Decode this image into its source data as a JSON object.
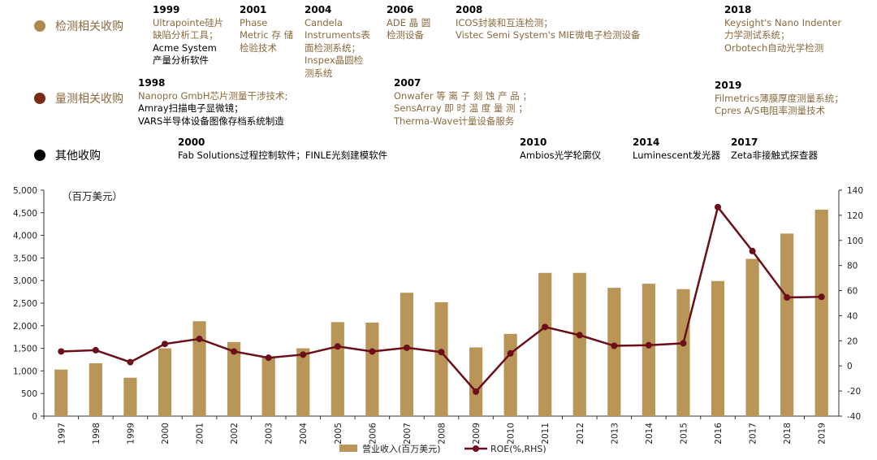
{
  "legend": {
    "inspection": {
      "label": "检测相关收购",
      "color": "#b0894f"
    },
    "metrology": {
      "label": "量测相关收购",
      "color": "#7a2a12"
    },
    "other": {
      "label": "其他收购",
      "color": "#000000"
    }
  },
  "events": {
    "e1999": {
      "year": "1999",
      "lines": [
        "Ultrapointe硅片",
        "缺陷分析工具；"
      ],
      "extra": [
        "Acme System",
        "产量分析软件"
      ]
    },
    "e2001": {
      "year": "2001",
      "lines": [
        "Phase",
        "Metric 存 储",
        "检验技术"
      ]
    },
    "e2004": {
      "year": "2004",
      "lines": [
        "Candela",
        "Instruments表",
        "面检测系统；",
        "Inspex晶圆检",
        "测系统"
      ]
    },
    "e2006": {
      "year": "2006",
      "lines": [
        "ADE 晶 圆",
        "检测设备"
      ]
    },
    "e2008": {
      "year": "2008",
      "lines": [
        "ICOS封装和互连检测；",
        "Vistec Semi System's MIE微电子检测设备"
      ]
    },
    "e2018": {
      "year": "2018",
      "lines": [
        "Keysight's Nano Indenter",
        "力学测试系统；",
        "Orbotech自动光学检测"
      ]
    },
    "e1998": {
      "year": "1998",
      "lines": [
        "Nanopro GmbH芯片测量干涉技术;"
      ],
      "extra": [
        "Amray扫描电子显微镜；",
        "VARS半导体设备图像存档系统制造"
      ]
    },
    "e2007": {
      "year": "2007",
      "lines": [
        "Onwafer 等 离 子 刻 蚀 产 品 ；",
        "SensArray 即 时 温 度 量 测 ；",
        "Therma-Wave计量设备服务"
      ]
    },
    "e2019": {
      "year": "2019",
      "lines": [
        "Filmetrics薄膜厚度测量系统；",
        "Cpres A/S电阻率测量技术"
      ]
    },
    "e2000": {
      "year": "2000",
      "lines": [
        "Fab Solutions过程控制软件；FINLE光刻建模软件"
      ]
    },
    "e2010": {
      "year": "2010",
      "lines": [
        "Ambios光学轮廓仪"
      ]
    },
    "e2014": {
      "year": "2014",
      "lines": [
        "Luminescent发光器"
      ]
    },
    "e2017": {
      "year": "2017",
      "lines": [
        "Zeta非接触式探查器"
      ]
    }
  },
  "chart_data": {
    "type": "bar",
    "unit_label": "（百万美元）",
    "categories": [
      "1997",
      "1998",
      "1999",
      "2000",
      "2001",
      "2002",
      "2003",
      "2004",
      "2005",
      "2006",
      "2007",
      "2008",
      "2009",
      "2010",
      "2011",
      "2012",
      "2013",
      "2014",
      "2015",
      "2016",
      "2017",
      "2018",
      "2019"
    ],
    "series": [
      {
        "name": "营业收入(百万美元)",
        "type": "bar",
        "axis": "left",
        "color": "#b99558",
        "values": [
          1030,
          1170,
          850,
          1500,
          2100,
          1640,
          1320,
          1500,
          2080,
          2070,
          2730,
          2520,
          1520,
          1820,
          3170,
          3170,
          2840,
          2930,
          2810,
          2990,
          3480,
          4040,
          4570
        ]
      },
      {
        "name": "ROE(%,RHS)",
        "type": "line",
        "axis": "right",
        "color": "#6b0f1a",
        "values": [
          11.5,
          12.5,
          3,
          17.5,
          21.5,
          11.5,
          6.5,
          9,
          15.5,
          11.5,
          14.5,
          11,
          -20.5,
          10,
          31,
          24.5,
          16,
          16.5,
          18,
          126.5,
          91.5,
          54.5,
          55
        ]
      }
    ],
    "y_left": {
      "min": 0,
      "max": 5000,
      "ticks": [
        "0",
        "500",
        "1,000",
        "1,500",
        "2,000",
        "2,500",
        "3,000",
        "3,500",
        "4,000",
        "4,500",
        "5,000"
      ]
    },
    "y_right": {
      "min": -40,
      "max": 140,
      "ticks": [
        "-40",
        "-20",
        "0",
        "20",
        "40",
        "60",
        "80",
        "100",
        "120",
        "140"
      ]
    },
    "legend_position": "bottom"
  }
}
